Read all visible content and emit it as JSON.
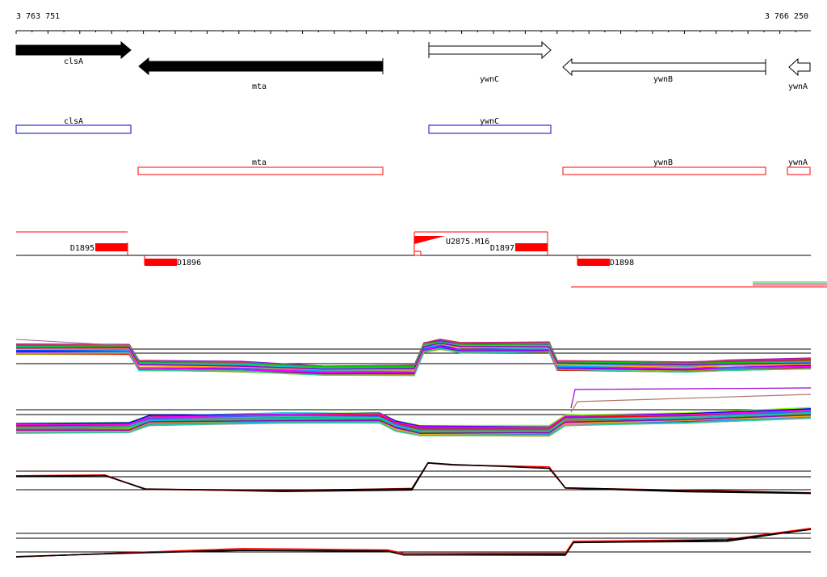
{
  "coordinates": {
    "start": "3 763 751",
    "end": "3 766 250"
  },
  "genes": [
    {
      "name": "clsA",
      "strand": "+",
      "style": "filled"
    },
    {
      "name": "mta",
      "strand": "-",
      "style": "filled"
    },
    {
      "name": "ywnC",
      "strand": "+",
      "style": "open"
    },
    {
      "name": "ywnB",
      "strand": "-",
      "style": "open"
    },
    {
      "name": "ywnA",
      "strand": "-",
      "style": "open"
    }
  ],
  "plus_track": [
    {
      "name": "clsA",
      "color": "#0000cc"
    },
    {
      "name": "ywnC",
      "color": "#0000cc"
    }
  ],
  "minus_track": [
    {
      "name": "mta",
      "color": "#ff0000"
    },
    {
      "name": "ywnB",
      "color": "#ff0000"
    },
    {
      "name": "ywnA",
      "color": "#ff0000"
    }
  ],
  "features": {
    "d1895": "D1895",
    "d1896": "D1896",
    "d1897": "D1897",
    "d1898": "D1898",
    "u2875": "U2875.M16"
  },
  "colors": {
    "forward_gene": "#000000",
    "segment": "#ff0000",
    "plus_box": "#0000cc",
    "minus_box": "#ff0000"
  }
}
